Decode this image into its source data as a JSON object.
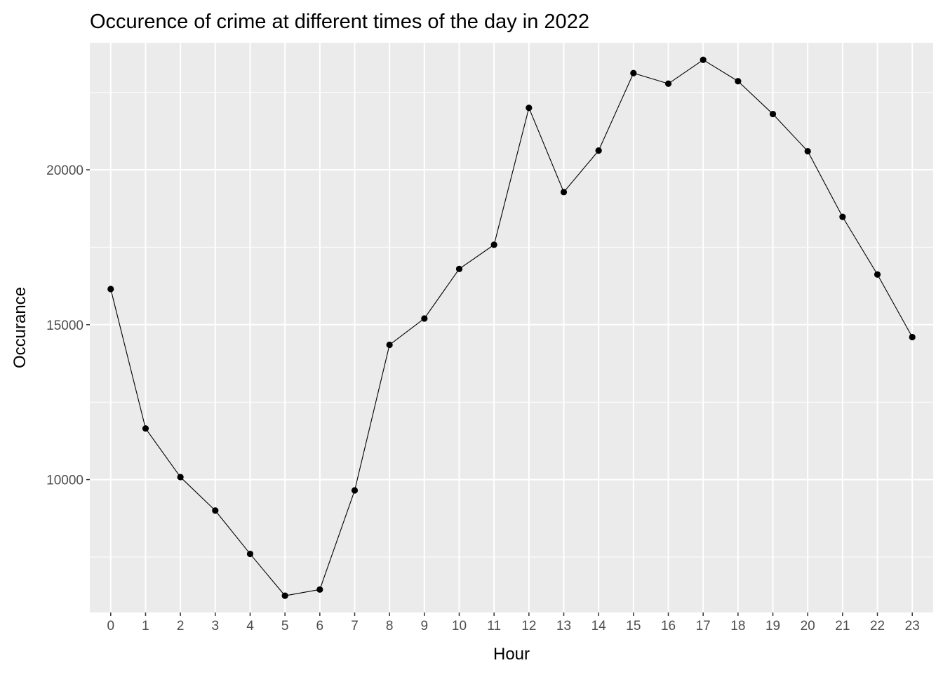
{
  "chart_data": {
    "type": "line",
    "title": "Occurence of crime at different times of the day in 2022",
    "xlabel": "Hour",
    "ylabel": "Occurance",
    "x": [
      0,
      1,
      2,
      3,
      4,
      5,
      6,
      7,
      8,
      9,
      10,
      11,
      12,
      13,
      14,
      15,
      16,
      17,
      18,
      19,
      20,
      21,
      22,
      23
    ],
    "x_tick_labels": [
      "0",
      "1",
      "2",
      "3",
      "4",
      "5",
      "6",
      "7",
      "8",
      "9",
      "10",
      "11",
      "12",
      "13",
      "14",
      "15",
      "16",
      "17",
      "18",
      "19",
      "20",
      "21",
      "22",
      "23"
    ],
    "series": [
      {
        "values": [
          16150,
          11650,
          10080,
          9000,
          7600,
          6250,
          6450,
          9650,
          14350,
          15200,
          16800,
          17580,
          22000,
          19280,
          20620,
          23120,
          22780,
          23550,
          22860,
          21800,
          20600,
          18480,
          16620,
          14600
        ]
      }
    ],
    "y_ticks": [
      10000,
      15000,
      20000
    ],
    "y_tick_labels": [
      "10000",
      "15000",
      "20000"
    ],
    "ylim": [
      5710,
      24100
    ],
    "xlim": [
      -0.6,
      23.6
    ],
    "grid": true,
    "legend": "none",
    "colors": {
      "panel_background": "#ebebeb",
      "grid_line": "#ffffff",
      "line": "#000000",
      "point": "#000000",
      "tick_label": "#4d4d4d"
    }
  }
}
